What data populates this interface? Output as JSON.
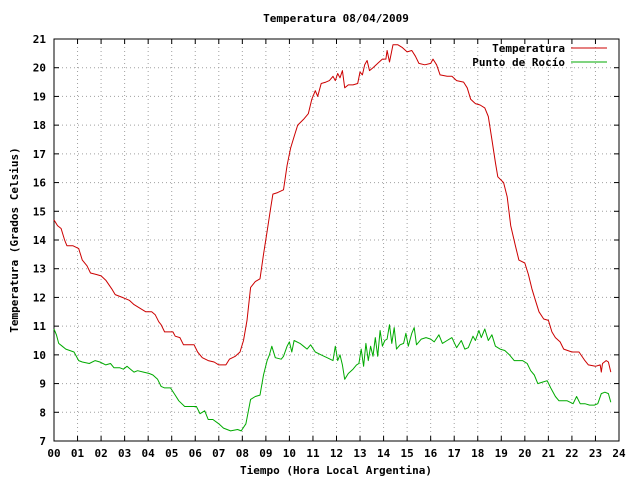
{
  "chart_data": {
    "type": "line",
    "title": "Temperatura 08/04/2009",
    "xlabel": "Tiempo (Hora Local Argentina)",
    "ylabel": "Temperatura (Grados Celsius)",
    "xlim": [
      0,
      24
    ],
    "ylim": [
      7,
      21
    ],
    "grid": true,
    "legend_position": "top-right",
    "x_tick_labels": [
      "00",
      "01",
      "02",
      "03",
      "04",
      "05",
      "06",
      "07",
      "08",
      "09",
      "10",
      "11",
      "12",
      "13",
      "14",
      "15",
      "16",
      "17",
      "18",
      "19",
      "20",
      "21",
      "22",
      "23",
      "24"
    ],
    "y_tick_labels": [
      "7",
      "8",
      "9",
      "10",
      "11",
      "12",
      "13",
      "14",
      "15",
      "16",
      "17",
      "18",
      "19",
      "20",
      "21"
    ],
    "series": [
      {
        "name": "Temperatura",
        "color": "#cc0000",
        "points": [
          [
            0.0,
            14.7
          ],
          [
            0.15,
            14.5
          ],
          [
            0.3,
            14.4
          ],
          [
            0.45,
            14.0
          ],
          [
            0.55,
            13.8
          ],
          [
            0.8,
            13.8
          ],
          [
            1.05,
            13.7
          ],
          [
            1.2,
            13.3
          ],
          [
            1.4,
            13.1
          ],
          [
            1.55,
            12.85
          ],
          [
            1.8,
            12.8
          ],
          [
            2.0,
            12.75
          ],
          [
            2.2,
            12.6
          ],
          [
            2.45,
            12.3
          ],
          [
            2.6,
            12.1
          ],
          [
            2.9,
            12.0
          ],
          [
            3.2,
            11.9
          ],
          [
            3.4,
            11.75
          ],
          [
            3.7,
            11.6
          ],
          [
            3.9,
            11.5
          ],
          [
            4.15,
            11.5
          ],
          [
            4.3,
            11.4
          ],
          [
            4.45,
            11.15
          ],
          [
            4.55,
            11.05
          ],
          [
            4.7,
            10.8
          ],
          [
            5.05,
            10.8
          ],
          [
            5.15,
            10.65
          ],
          [
            5.35,
            10.6
          ],
          [
            5.5,
            10.35
          ],
          [
            5.95,
            10.35
          ],
          [
            6.1,
            10.1
          ],
          [
            6.3,
            9.9
          ],
          [
            6.55,
            9.8
          ],
          [
            6.8,
            9.75
          ],
          [
            7.0,
            9.65
          ],
          [
            7.3,
            9.65
          ],
          [
            7.45,
            9.85
          ],
          [
            7.7,
            9.95
          ],
          [
            7.9,
            10.1
          ],
          [
            8.05,
            10.5
          ],
          [
            8.2,
            11.2
          ],
          [
            8.35,
            12.35
          ],
          [
            8.55,
            12.55
          ],
          [
            8.75,
            12.65
          ],
          [
            8.9,
            13.5
          ],
          [
            9.05,
            14.3
          ],
          [
            9.2,
            15.1
          ],
          [
            9.3,
            15.6
          ],
          [
            9.5,
            15.65
          ],
          [
            9.75,
            15.75
          ],
          [
            9.9,
            16.6
          ],
          [
            10.05,
            17.2
          ],
          [
            10.2,
            17.6
          ],
          [
            10.35,
            18.0
          ],
          [
            10.6,
            18.2
          ],
          [
            10.8,
            18.4
          ],
          [
            10.95,
            18.9
          ],
          [
            11.1,
            19.2
          ],
          [
            11.2,
            19.0
          ],
          [
            11.35,
            19.45
          ],
          [
            11.55,
            19.5
          ],
          [
            11.7,
            19.55
          ],
          [
            11.85,
            19.7
          ],
          [
            11.95,
            19.55
          ],
          [
            12.05,
            19.8
          ],
          [
            12.15,
            19.65
          ],
          [
            12.25,
            19.9
          ],
          [
            12.35,
            19.3
          ],
          [
            12.5,
            19.4
          ],
          [
            12.7,
            19.4
          ],
          [
            12.9,
            19.45
          ],
          [
            13.0,
            19.85
          ],
          [
            13.1,
            19.75
          ],
          [
            13.2,
            20.1
          ],
          [
            13.3,
            20.25
          ],
          [
            13.4,
            19.9
          ],
          [
            13.55,
            20.0
          ],
          [
            13.75,
            20.15
          ],
          [
            13.95,
            20.3
          ],
          [
            14.1,
            20.3
          ],
          [
            14.15,
            20.6
          ],
          [
            14.25,
            20.2
          ],
          [
            14.4,
            20.8
          ],
          [
            14.6,
            20.8
          ],
          [
            14.8,
            20.7
          ],
          [
            15.0,
            20.55
          ],
          [
            15.2,
            20.6
          ],
          [
            15.35,
            20.4
          ],
          [
            15.5,
            20.15
          ],
          [
            15.75,
            20.1
          ],
          [
            16.0,
            20.15
          ],
          [
            16.1,
            20.3
          ],
          [
            16.25,
            20.1
          ],
          [
            16.4,
            19.75
          ],
          [
            16.7,
            19.7
          ],
          [
            16.9,
            19.7
          ],
          [
            17.1,
            19.55
          ],
          [
            17.4,
            19.5
          ],
          [
            17.55,
            19.3
          ],
          [
            17.7,
            18.9
          ],
          [
            17.9,
            18.75
          ],
          [
            18.1,
            18.7
          ],
          [
            18.3,
            18.6
          ],
          [
            18.45,
            18.3
          ],
          [
            18.6,
            17.5
          ],
          [
            18.75,
            16.7
          ],
          [
            18.85,
            16.2
          ],
          [
            19.1,
            16.0
          ],
          [
            19.25,
            15.5
          ],
          [
            19.4,
            14.5
          ],
          [
            19.6,
            13.8
          ],
          [
            19.75,
            13.3
          ],
          [
            20.0,
            13.2
          ],
          [
            20.15,
            12.8
          ],
          [
            20.3,
            12.3
          ],
          [
            20.45,
            11.9
          ],
          [
            20.6,
            11.5
          ],
          [
            20.8,
            11.25
          ],
          [
            21.0,
            11.2
          ],
          [
            21.15,
            10.8
          ],
          [
            21.3,
            10.6
          ],
          [
            21.5,
            10.45
          ],
          [
            21.65,
            10.2
          ],
          [
            22.0,
            10.1
          ],
          [
            22.3,
            10.1
          ],
          [
            22.55,
            9.8
          ],
          [
            22.7,
            9.65
          ],
          [
            23.0,
            9.6
          ],
          [
            23.2,
            9.65
          ],
          [
            23.25,
            9.4
          ],
          [
            23.3,
            9.7
          ],
          [
            23.45,
            9.8
          ],
          [
            23.55,
            9.75
          ],
          [
            23.65,
            9.4
          ]
        ]
      },
      {
        "name": "Punto de Rocío",
        "color": "#00aa00",
        "points": [
          [
            0.0,
            10.9
          ],
          [
            0.1,
            10.7
          ],
          [
            0.2,
            10.4
          ],
          [
            0.35,
            10.3
          ],
          [
            0.5,
            10.2
          ],
          [
            0.85,
            10.1
          ],
          [
            1.05,
            9.8
          ],
          [
            1.2,
            9.75
          ],
          [
            1.5,
            9.7
          ],
          [
            1.75,
            9.8
          ],
          [
            1.95,
            9.75
          ],
          [
            2.2,
            9.65
          ],
          [
            2.4,
            9.7
          ],
          [
            2.55,
            9.55
          ],
          [
            2.8,
            9.55
          ],
          [
            2.95,
            9.5
          ],
          [
            3.1,
            9.6
          ],
          [
            3.25,
            9.5
          ],
          [
            3.4,
            9.4
          ],
          [
            3.55,
            9.45
          ],
          [
            3.8,
            9.4
          ],
          [
            4.05,
            9.35
          ],
          [
            4.2,
            9.3
          ],
          [
            4.4,
            9.15
          ],
          [
            4.55,
            8.9
          ],
          [
            4.7,
            8.85
          ],
          [
            4.95,
            8.85
          ],
          [
            5.15,
            8.6
          ],
          [
            5.3,
            8.4
          ],
          [
            5.55,
            8.2
          ],
          [
            5.75,
            8.2
          ],
          [
            6.05,
            8.2
          ],
          [
            6.2,
            7.95
          ],
          [
            6.4,
            8.05
          ],
          [
            6.55,
            7.75
          ],
          [
            6.75,
            7.75
          ],
          [
            7.0,
            7.6
          ],
          [
            7.2,
            7.45
          ],
          [
            7.5,
            7.35
          ],
          [
            7.8,
            7.4
          ],
          [
            7.95,
            7.35
          ],
          [
            8.15,
            7.6
          ],
          [
            8.35,
            8.45
          ],
          [
            8.55,
            8.55
          ],
          [
            8.75,
            8.6
          ],
          [
            8.9,
            9.3
          ],
          [
            9.05,
            9.8
          ],
          [
            9.15,
            10.0
          ],
          [
            9.25,
            10.3
          ],
          [
            9.4,
            9.9
          ],
          [
            9.65,
            9.85
          ],
          [
            9.75,
            9.95
          ],
          [
            9.9,
            10.3
          ],
          [
            10.0,
            10.45
          ],
          [
            10.1,
            10.1
          ],
          [
            10.2,
            10.5
          ],
          [
            10.45,
            10.4
          ],
          [
            10.6,
            10.3
          ],
          [
            10.75,
            10.2
          ],
          [
            10.9,
            10.35
          ],
          [
            11.1,
            10.1
          ],
          [
            11.35,
            10.0
          ],
          [
            11.6,
            9.9
          ],
          [
            11.85,
            9.8
          ],
          [
            11.95,
            10.3
          ],
          [
            12.05,
            9.8
          ],
          [
            12.15,
            10.0
          ],
          [
            12.25,
            9.65
          ],
          [
            12.35,
            9.15
          ],
          [
            12.5,
            9.35
          ],
          [
            12.7,
            9.5
          ],
          [
            12.85,
            9.65
          ],
          [
            12.95,
            9.7
          ],
          [
            13.05,
            10.2
          ],
          [
            13.15,
            9.6
          ],
          [
            13.25,
            10.4
          ],
          [
            13.35,
            9.8
          ],
          [
            13.45,
            10.3
          ],
          [
            13.55,
            9.95
          ],
          [
            13.65,
            10.6
          ],
          [
            13.75,
            9.95
          ],
          [
            13.85,
            10.85
          ],
          [
            13.95,
            10.3
          ],
          [
            14.05,
            10.5
          ],
          [
            14.15,
            10.55
          ],
          [
            14.25,
            11.05
          ],
          [
            14.35,
            10.4
          ],
          [
            14.45,
            10.95
          ],
          [
            14.55,
            10.2
          ],
          [
            14.7,
            10.35
          ],
          [
            14.85,
            10.4
          ],
          [
            14.95,
            10.75
          ],
          [
            15.05,
            10.3
          ],
          [
            15.2,
            10.75
          ],
          [
            15.3,
            10.95
          ],
          [
            15.4,
            10.35
          ],
          [
            15.6,
            10.55
          ],
          [
            15.8,
            10.6
          ],
          [
            16.0,
            10.55
          ],
          [
            16.15,
            10.45
          ],
          [
            16.35,
            10.7
          ],
          [
            16.5,
            10.4
          ],
          [
            16.7,
            10.5
          ],
          [
            16.9,
            10.6
          ],
          [
            17.1,
            10.25
          ],
          [
            17.3,
            10.5
          ],
          [
            17.45,
            10.2
          ],
          [
            17.6,
            10.25
          ],
          [
            17.8,
            10.65
          ],
          [
            17.9,
            10.5
          ],
          [
            18.05,
            10.85
          ],
          [
            18.15,
            10.6
          ],
          [
            18.3,
            10.9
          ],
          [
            18.45,
            10.5
          ],
          [
            18.6,
            10.7
          ],
          [
            18.75,
            10.3
          ],
          [
            18.95,
            10.2
          ],
          [
            19.15,
            10.15
          ],
          [
            19.35,
            10.0
          ],
          [
            19.55,
            9.8
          ],
          [
            19.9,
            9.8
          ],
          [
            20.1,
            9.7
          ],
          [
            20.25,
            9.45
          ],
          [
            20.4,
            9.3
          ],
          [
            20.55,
            9.0
          ],
          [
            20.75,
            9.05
          ],
          [
            20.95,
            9.1
          ],
          [
            21.1,
            8.85
          ],
          [
            21.3,
            8.55
          ],
          [
            21.45,
            8.4
          ],
          [
            21.8,
            8.4
          ],
          [
            22.05,
            8.3
          ],
          [
            22.2,
            8.55
          ],
          [
            22.35,
            8.3
          ],
          [
            22.55,
            8.3
          ],
          [
            22.75,
            8.25
          ],
          [
            22.95,
            8.25
          ],
          [
            23.1,
            8.3
          ],
          [
            23.25,
            8.65
          ],
          [
            23.4,
            8.7
          ],
          [
            23.55,
            8.65
          ],
          [
            23.65,
            8.35
          ]
        ]
      }
    ]
  }
}
